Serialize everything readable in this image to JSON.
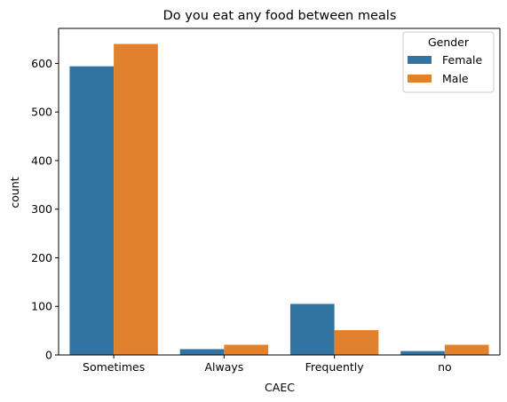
{
  "chart_data": {
    "type": "bar",
    "title": "Do you eat any food between meals",
    "xlabel": "CAEC",
    "ylabel": "count",
    "categories": [
      "Sometimes",
      "Always",
      "Frequently",
      "no"
    ],
    "series": [
      {
        "name": "Female",
        "color": "#3274a1",
        "values": [
          594,
          12,
          105,
          8
        ]
      },
      {
        "name": "Male",
        "color": "#e1812c",
        "values": [
          640,
          21,
          51,
          21
        ]
      }
    ],
    "ylim": [
      0,
      672
    ],
    "yticks": [
      0,
      100,
      200,
      300,
      400,
      500,
      600
    ],
    "legend": {
      "title": "Gender",
      "placement": "top-right"
    },
    "grid": false
  }
}
